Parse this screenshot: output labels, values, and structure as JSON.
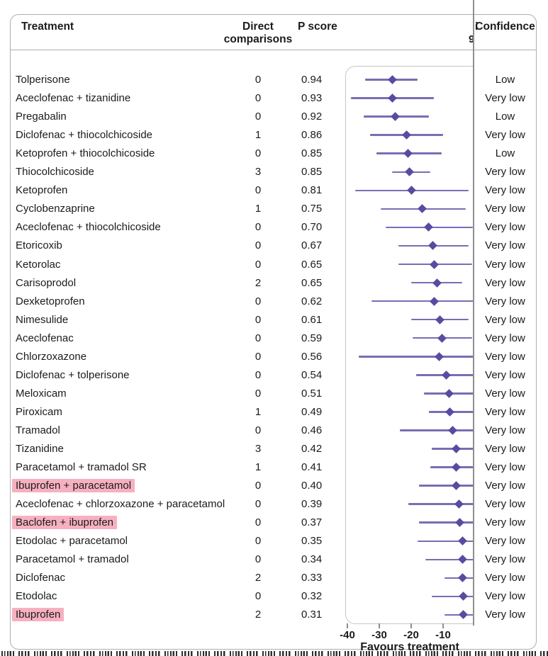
{
  "header": {
    "treatment": "Treatment",
    "direct_line1": "Direct",
    "direct_line2": "comparisons",
    "p_score": "P score",
    "confidence": "Confidence",
    "clipped_fragment_before_confidence": "i",
    "clipped_fragment_below_confidence": "9"
  },
  "axis": {
    "favours_label": "Favours treatment"
  },
  "colors": {
    "marker": "#5b4aa0",
    "ci_line": "#7a6db3",
    "highlight": "#f7b0c0",
    "zero_line": "#8f8f8f",
    "text": "#1b1b1b"
  },
  "chart_data": {
    "type": "forest",
    "x_axis": {
      "ticks": [
        -40,
        -30,
        -20,
        -10
      ],
      "label": "Favours treatment",
      "visible_range": [
        -42,
        0
      ],
      "zero_line_clips_plot": true
    },
    "note": "CI bars are clipped at the vertical zero reference line; a cropped illegible caption line is cut off at the bottom edge",
    "rows": [
      {
        "treatment": "Tolperisone",
        "direct_comparisons": "0",
        "p_score": "0.94",
        "confidence": "Low",
        "estimate": -26,
        "ci_lower": -34.5,
        "ci_upper": -18,
        "clipped_at_zero": false,
        "highlighted": false
      },
      {
        "treatment": "Aceclofenac + tizanidine",
        "direct_comparisons": "0",
        "p_score": "0.93",
        "confidence": "Very low",
        "estimate": -26,
        "ci_lower": -39,
        "ci_upper": -13,
        "clipped_at_zero": false,
        "highlighted": false
      },
      {
        "treatment": "Pregabalin",
        "direct_comparisons": "0",
        "p_score": "0.92",
        "confidence": "Low",
        "estimate": -25,
        "ci_lower": -35,
        "ci_upper": -14.5,
        "clipped_at_zero": false,
        "highlighted": false
      },
      {
        "treatment": "Diclofenac + thiocolchicoside",
        "direct_comparisons": "1",
        "p_score": "0.86",
        "confidence": "Very low",
        "estimate": -21.5,
        "ci_lower": -33,
        "ci_upper": -10,
        "clipped_at_zero": false,
        "highlighted": false
      },
      {
        "treatment": "Ketoprofen + thiocolchicoside",
        "direct_comparisons": "0",
        "p_score": "0.85",
        "confidence": "Low",
        "estimate": -21,
        "ci_lower": -31,
        "ci_upper": -10.5,
        "clipped_at_zero": false,
        "highlighted": false
      },
      {
        "treatment": "Thiocolchicoside",
        "direct_comparisons": "3",
        "p_score": "0.85",
        "confidence": "Very low",
        "estimate": -20.5,
        "ci_lower": -26,
        "ci_upper": -14,
        "clipped_at_zero": false,
        "highlighted": false
      },
      {
        "treatment": "Ketoprofen",
        "direct_comparisons": "0",
        "p_score": "0.81",
        "confidence": "Very low",
        "estimate": -20,
        "ci_lower": -37.5,
        "ci_upper": -2,
        "clipped_at_zero": false,
        "highlighted": false
      },
      {
        "treatment": "Cyclobenzaprine",
        "direct_comparisons": "1",
        "p_score": "0.75",
        "confidence": "Very low",
        "estimate": -16.5,
        "ci_lower": -29.5,
        "ci_upper": -3,
        "clipped_at_zero": false,
        "highlighted": false
      },
      {
        "treatment": "Aceclofenac + thiocolchicoside",
        "direct_comparisons": "0",
        "p_score": "0.70",
        "confidence": "Very low",
        "estimate": -14.5,
        "ci_lower": -28,
        "ci_upper": -0.7,
        "clipped_at_zero": false,
        "highlighted": false
      },
      {
        "treatment": "Etoricoxib",
        "direct_comparisons": "0",
        "p_score": "0.67",
        "confidence": "Very low",
        "estimate": -13.3,
        "ci_lower": -24,
        "ci_upper": -2,
        "clipped_at_zero": false,
        "highlighted": false
      },
      {
        "treatment": "Ketorolac",
        "direct_comparisons": "0",
        "p_score": "0.65",
        "confidence": "Very low",
        "estimate": -12.7,
        "ci_lower": -24,
        "ci_upper": -1,
        "clipped_at_zero": false,
        "highlighted": false
      },
      {
        "treatment": "Carisoprodol",
        "direct_comparisons": "2",
        "p_score": "0.65",
        "confidence": "Very low",
        "estimate": -12,
        "ci_lower": -20,
        "ci_upper": -4,
        "clipped_at_zero": false,
        "highlighted": false
      },
      {
        "treatment": "Dexketoprofen",
        "direct_comparisons": "0",
        "p_score": "0.62",
        "confidence": "Very low",
        "estimate": -12.7,
        "ci_lower": -32.5,
        "ci_upper": 0,
        "clipped_at_zero": true,
        "highlighted": false
      },
      {
        "treatment": "Nimesulide",
        "direct_comparisons": "0",
        "p_score": "0.61",
        "confidence": "Very low",
        "estimate": -11,
        "ci_lower": -20,
        "ci_upper": -2,
        "clipped_at_zero": false,
        "highlighted": false
      },
      {
        "treatment": "Aceclofenac",
        "direct_comparisons": "0",
        "p_score": "0.59",
        "confidence": "Very low",
        "estimate": -10.4,
        "ci_lower": -19.5,
        "ci_upper": -1,
        "clipped_at_zero": false,
        "highlighted": false
      },
      {
        "treatment": "Chlorzoxazone",
        "direct_comparisons": "0",
        "p_score": "0.56",
        "confidence": "Very low",
        "estimate": -11.3,
        "ci_lower": -36.5,
        "ci_upper": 0,
        "clipped_at_zero": true,
        "highlighted": false
      },
      {
        "treatment": "Diclofenac + tolperisone",
        "direct_comparisons": "0",
        "p_score": "0.54",
        "confidence": "Very low",
        "estimate": -9,
        "ci_lower": -18.5,
        "ci_upper": 0,
        "clipped_at_zero": true,
        "highlighted": false
      },
      {
        "treatment": "Meloxicam",
        "direct_comparisons": "0",
        "p_score": "0.51",
        "confidence": "Very low",
        "estimate": -8.2,
        "ci_lower": -16,
        "ci_upper": 0,
        "clipped_at_zero": true,
        "highlighted": false
      },
      {
        "treatment": "Piroxicam",
        "direct_comparisons": "1",
        "p_score": "0.49",
        "confidence": "Very low",
        "estimate": -7.8,
        "ci_lower": -14.5,
        "ci_upper": 0,
        "clipped_at_zero": true,
        "highlighted": false
      },
      {
        "treatment": "Tramadol",
        "direct_comparisons": "0",
        "p_score": "0.46",
        "confidence": "Very low",
        "estimate": -7,
        "ci_lower": -23.5,
        "ci_upper": 0,
        "clipped_at_zero": true,
        "highlighted": false
      },
      {
        "treatment": "Tizanidine",
        "direct_comparisons": "3",
        "p_score": "0.42",
        "confidence": "Very low",
        "estimate": -6,
        "ci_lower": -13.5,
        "ci_upper": 0,
        "clipped_at_zero": true,
        "highlighted": false
      },
      {
        "treatment": "Paracetamol + tramadol SR",
        "direct_comparisons": "1",
        "p_score": "0.41",
        "confidence": "Very low",
        "estimate": -6,
        "ci_lower": -14,
        "ci_upper": 0,
        "clipped_at_zero": true,
        "highlighted": false
      },
      {
        "treatment": "Ibuprofen + paracetamol",
        "direct_comparisons": "0",
        "p_score": "0.40",
        "confidence": "Very low",
        "estimate": -5.8,
        "ci_lower": -17.5,
        "ci_upper": 0,
        "clipped_at_zero": true,
        "highlighted": true
      },
      {
        "treatment": "Aceclofenac + chlorzoxazone + paracetamol",
        "direct_comparisons": "0",
        "p_score": "0.39",
        "confidence": "Very low",
        "estimate": -5,
        "ci_lower": -21,
        "ci_upper": 0,
        "clipped_at_zero": true,
        "highlighted": false
      },
      {
        "treatment": "Baclofen + ibuprofen",
        "direct_comparisons": "0",
        "p_score": "0.37",
        "confidence": "Very low",
        "estimate": -4.7,
        "ci_lower": -17.5,
        "ci_upper": 0,
        "clipped_at_zero": true,
        "highlighted": true
      },
      {
        "treatment": "Etodolac + paracetamol",
        "direct_comparisons": "0",
        "p_score": "0.35",
        "confidence": "Very low",
        "estimate": -4,
        "ci_lower": -18,
        "ci_upper": 0,
        "clipped_at_zero": true,
        "highlighted": false
      },
      {
        "treatment": "Paracetamol + tramadol",
        "direct_comparisons": "0",
        "p_score": "0.34",
        "confidence": "Very low",
        "estimate": -4,
        "ci_lower": -15.5,
        "ci_upper": 0,
        "clipped_at_zero": true,
        "highlighted": false
      },
      {
        "treatment": "Diclofenac",
        "direct_comparisons": "2",
        "p_score": "0.33",
        "confidence": "Very low",
        "estimate": -4,
        "ci_lower": -9.5,
        "ci_upper": 0,
        "clipped_at_zero": true,
        "highlighted": false
      },
      {
        "treatment": "Etodolac",
        "direct_comparisons": "0",
        "p_score": "0.32",
        "confidence": "Very low",
        "estimate": -3.6,
        "ci_lower": -13.5,
        "ci_upper": 0,
        "clipped_at_zero": true,
        "highlighted": false
      },
      {
        "treatment": "Ibuprofen",
        "direct_comparisons": "2",
        "p_score": "0.31",
        "confidence": "Very low",
        "estimate": -3.6,
        "ci_lower": -9.5,
        "ci_upper": 0,
        "clipped_at_zero": true,
        "highlighted": true
      }
    ]
  }
}
